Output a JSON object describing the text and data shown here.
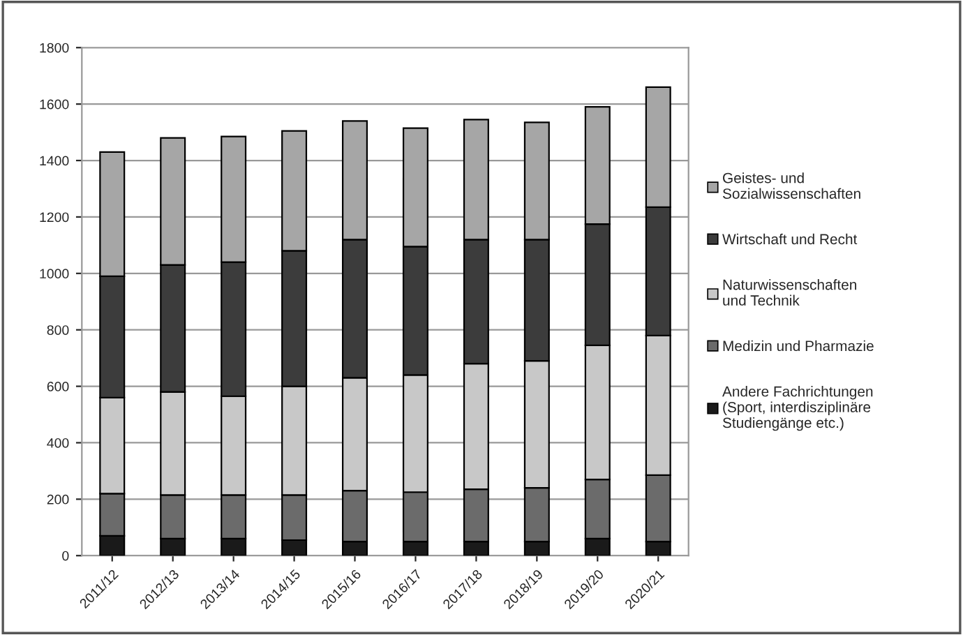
{
  "chart_data": {
    "type": "bar",
    "stacked": true,
    "categories": [
      "2011/12",
      "2012/13",
      "2013/14",
      "2014/15",
      "2015/16",
      "2016/17",
      "2017/18",
      "2018/19",
      "2019/20",
      "2020/21"
    ],
    "series": [
      {
        "name": "Andere Fachrichtungen\n(Sport, interdisziplinäre\nStudiengänge etc.)",
        "color": "#1a1a1a",
        "values": [
          70,
          60,
          60,
          55,
          50,
          50,
          50,
          50,
          60,
          50
        ]
      },
      {
        "name": "Medizin und Pharmazie",
        "color": "#6b6b6b",
        "values": [
          150,
          155,
          155,
          160,
          180,
          175,
          185,
          190,
          210,
          235
        ]
      },
      {
        "name": "Naturwissenschaften\nund Technik",
        "color": "#c8c8c8",
        "values": [
          340,
          365,
          350,
          385,
          400,
          415,
          445,
          450,
          475,
          495
        ]
      },
      {
        "name": "Wirtschaft und Recht",
        "color": "#3c3c3c",
        "values": [
          430,
          450,
          475,
          480,
          490,
          455,
          440,
          430,
          430,
          455
        ]
      },
      {
        "name": "Geistes- und\nSozialwissenschaften",
        "color": "#a6a6a6",
        "values": [
          440,
          450,
          445,
          425,
          420,
          420,
          425,
          415,
          415,
          425
        ]
      }
    ],
    "ylim": [
      0,
      1800
    ],
    "yticks": [
      0,
      200,
      400,
      600,
      800,
      1000,
      1200,
      1400,
      1600,
      1800
    ],
    "grid": "y",
    "legend": "right"
  }
}
